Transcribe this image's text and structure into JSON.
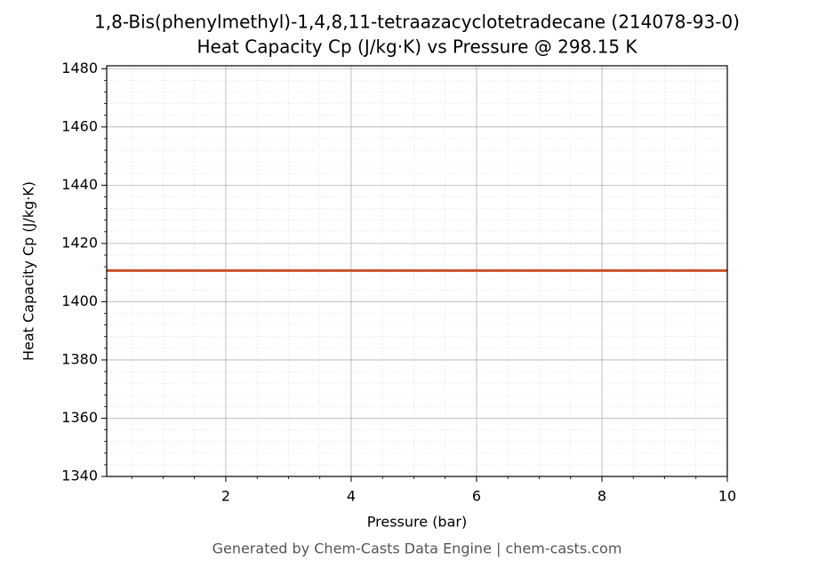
{
  "chart_data": {
    "type": "line",
    "title": "1,8-Bis(phenylmethyl)-1,4,8,11-tetraazacyclotetradecane (214078-93-0)",
    "subtitle": "Heat Capacity Cp (J/kg·K) vs Pressure @ 298.15 K",
    "x_label": "Pressure (bar)",
    "y_label": "Heat Capacity Cp (J/kg·K)",
    "footer": "Generated by Chem-Casts Data Engine | chem-casts.com",
    "x": [
      0.1,
      10
    ],
    "series": [
      {
        "name": "Cp",
        "color": "#c8522a",
        "values": [
          1410.7,
          1410.7
        ]
      }
    ],
    "xlim": [
      0.1,
      10
    ],
    "xticks": [
      2,
      4,
      6,
      8,
      10
    ],
    "ylim": [
      1340,
      1481
    ],
    "yticks": [
      1340,
      1360,
      1380,
      1400,
      1420,
      1440,
      1460,
      1480
    ],
    "x_minor_ticks": [
      0.5,
      1,
      1.5,
      2.5,
      3,
      3.5,
      4.5,
      5,
      5.5,
      6.5,
      7,
      7.5,
      8.5,
      9,
      9.5
    ],
    "y_minor_ticks": [
      1344,
      1348,
      1352,
      1356,
      1364,
      1368,
      1372,
      1376,
      1384,
      1388,
      1392,
      1396,
      1404,
      1408,
      1412,
      1416,
      1424,
      1428,
      1432,
      1436,
      1444,
      1448,
      1452,
      1456,
      1464,
      1468,
      1472,
      1476
    ],
    "grid": true,
    "minor_grid": true
  }
}
